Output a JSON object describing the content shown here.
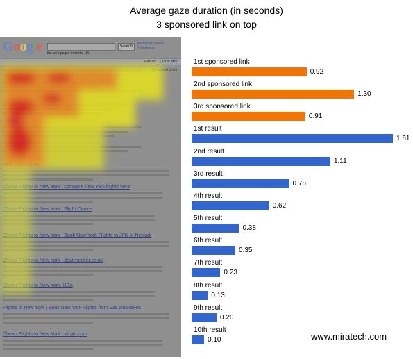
{
  "chart_title": "Average gaze duration (in seconds)",
  "chart_subtitle": "3 sponsored link on top",
  "watermark": "www.miratech.com",
  "colors": {
    "sponsored": "#f07406",
    "organic": "#3366cc",
    "value_text": "#000000"
  },
  "screenshot": {
    "logo": "Google",
    "search_button": "Search",
    "advanced_search": "Advanced Search",
    "preferences": "Preferences",
    "radio_options": "the web   pages from the UK",
    "results_info": "Results 1 - 10 of abou",
    "sponsored_links_label": "Sponsored Links",
    "result_links": [
      "New York Flights",
      "Cheap Flights to New York | compare New York flights here",
      "Cheap Flights to New York | Flight Centre",
      "Cheap Flights to New York | Book New York Flights to JFK or Newark",
      "Cheap Flights to New York | dealchecker.co.uk",
      "Cheap Flights to New York, USA",
      "Flights to New York | Book New York Flights from £35 plus taxes",
      "Cheap Flights to New York - Virgin.com"
    ]
  },
  "chart_data": {
    "type": "bar",
    "orientation": "horizontal",
    "title": "Average gaze duration (in seconds)",
    "subtitle": "3 sponsored link on top",
    "categories": [
      "1st sponsored link",
      "2nd sponsored link",
      "3rd sponsored link",
      "1st result",
      "2nd result",
      "3rd result",
      "4th result",
      "5th result",
      "6th result",
      "7th result",
      "8th result",
      "9th result",
      "10th result"
    ],
    "values": [
      0.92,
      1.3,
      0.91,
      1.61,
      1.11,
      0.78,
      0.62,
      0.38,
      0.35,
      0.23,
      0.13,
      0.2,
      0.1
    ],
    "value_labels": [
      "0.92",
      "1.30",
      "0.91",
      "1.61",
      "1.11",
      "0.78",
      "0.62",
      "0.38",
      "0.35",
      "0.23",
      "0.13",
      "0.20",
      "0.10"
    ],
    "groups": [
      "sponsored",
      "sponsored",
      "sponsored",
      "organic",
      "organic",
      "organic",
      "organic",
      "organic",
      "organic",
      "organic",
      "organic",
      "organic",
      "organic"
    ],
    "xlim": [
      0,
      1.61
    ],
    "grid": false,
    "legend": "none"
  }
}
